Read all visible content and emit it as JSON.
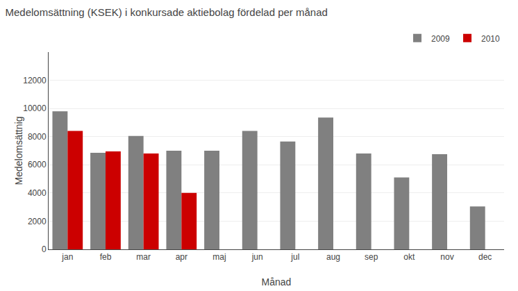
{
  "chart_data": {
    "type": "bar",
    "title": "Medelomsättning (KSEK) i konkursade aktiebolag fördelad per månad",
    "xlabel": "Månad",
    "ylabel": "Medelomsättnig",
    "categories": [
      "jan",
      "feb",
      "mar",
      "apr",
      "maj",
      "jun",
      "jul",
      "aug",
      "sep",
      "okt",
      "nov",
      "dec"
    ],
    "series": [
      {
        "name": "2009",
        "color": "#808080",
        "values": [
          9800,
          6850,
          8050,
          7000,
          7000,
          8400,
          7650,
          9350,
          6800,
          5100,
          6750,
          3050
        ]
      },
      {
        "name": "2010",
        "color": "#cc0000",
        "values": [
          8400,
          6950,
          6800,
          4000,
          null,
          null,
          null,
          null,
          null,
          null,
          null,
          null
        ]
      }
    ],
    "ylim": [
      0,
      14000
    ],
    "yticks": [
      0,
      2000,
      4000,
      6000,
      8000,
      10000,
      12000
    ],
    "grid": true,
    "legend": "upper right"
  }
}
